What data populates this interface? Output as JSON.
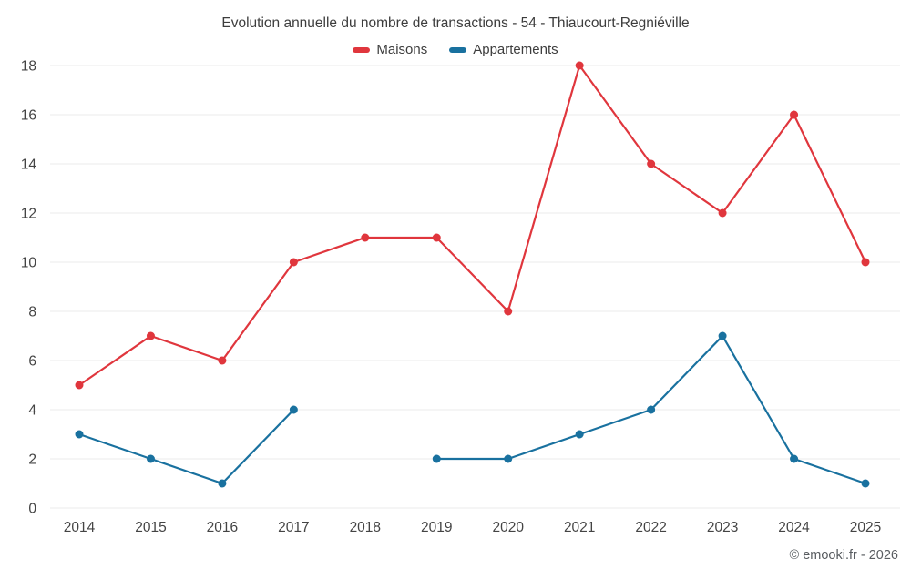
{
  "chart_data": {
    "type": "line",
    "title": "Evolution annuelle du nombre de transactions - 54 - Thiaucourt-Regniéville",
    "categories": [
      "2014",
      "2015",
      "2016",
      "2017",
      "2018",
      "2019",
      "2020",
      "2021",
      "2022",
      "2023",
      "2024",
      "2025"
    ],
    "series": [
      {
        "name": "Maisons",
        "color": "#e0363d",
        "values": [
          5,
          7,
          6,
          10,
          11,
          11,
          8,
          18,
          14,
          12,
          16,
          10
        ]
      },
      {
        "name": "Appartements",
        "color": "#19719f",
        "values": [
          3,
          2,
          1,
          4,
          null,
          2,
          2,
          3,
          4,
          7,
          2,
          1
        ]
      }
    ],
    "xlabel": "",
    "ylabel": "",
    "ylim": [
      0,
      18
    ],
    "ytick_step": 2,
    "grid": "horizontal",
    "grid_color": "#ebebeb",
    "tick_label_color": "#444444",
    "legend_position": "top"
  },
  "footer": {
    "credit": "© emooki.fr - 2026"
  }
}
